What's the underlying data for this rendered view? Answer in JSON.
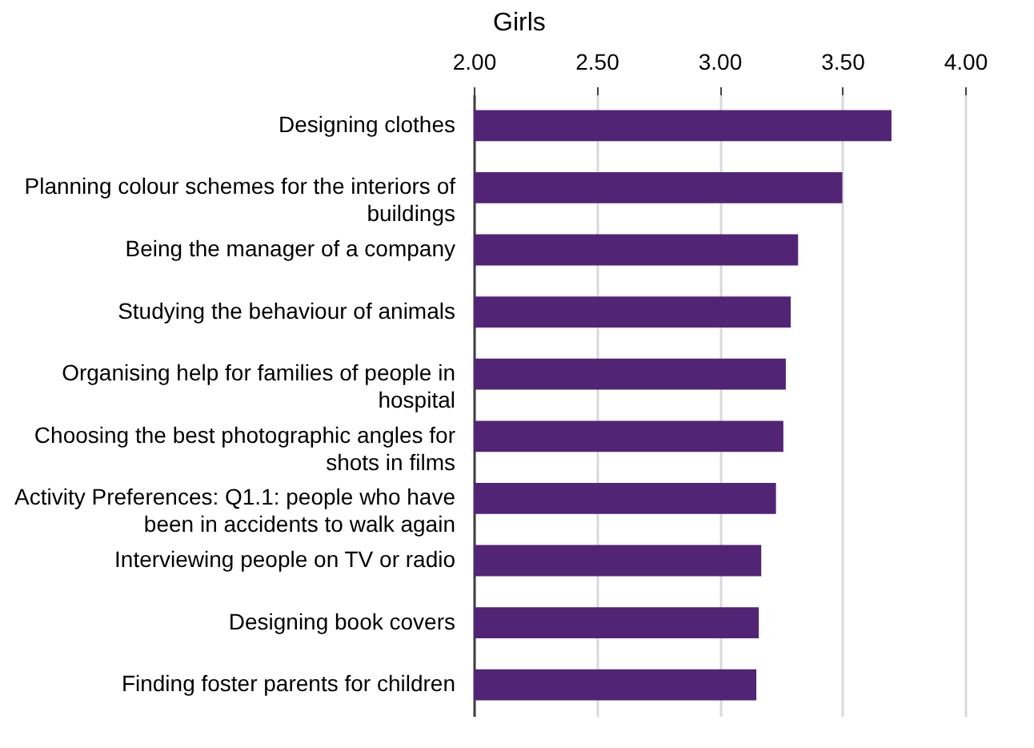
{
  "chart_data": {
    "type": "bar",
    "title": "Girls",
    "orientation": "horizontal",
    "categories": [
      "Designing clothes",
      "Planning colour schemes for the interiors of buildings",
      "Being the manager of a company",
      "Studying the behaviour of animals",
      "Organising help for families of people in hospital",
      "Choosing the best photographic angles for shots in films",
      "Activity Preferences: Q1.1: people who have been in accidents to walk again",
      "Interviewing people on TV or radio",
      "Designing book covers",
      "Finding foster parents for children"
    ],
    "values": [
      3.7,
      3.5,
      3.32,
      3.29,
      3.27,
      3.26,
      3.23,
      3.17,
      3.16,
      3.15
    ],
    "color": "#522475",
    "xlim": [
      2.0,
      4.0
    ],
    "xticks": [
      {
        "value": 2,
        "label": "2.00"
      },
      {
        "value": 2.5,
        "label": "2.50"
      },
      {
        "value": 3,
        "label": "3.00"
      },
      {
        "value": 3.5,
        "label": "3.50"
      },
      {
        "value": 4,
        "label": "4.00"
      }
    ],
    "grid": "x"
  }
}
